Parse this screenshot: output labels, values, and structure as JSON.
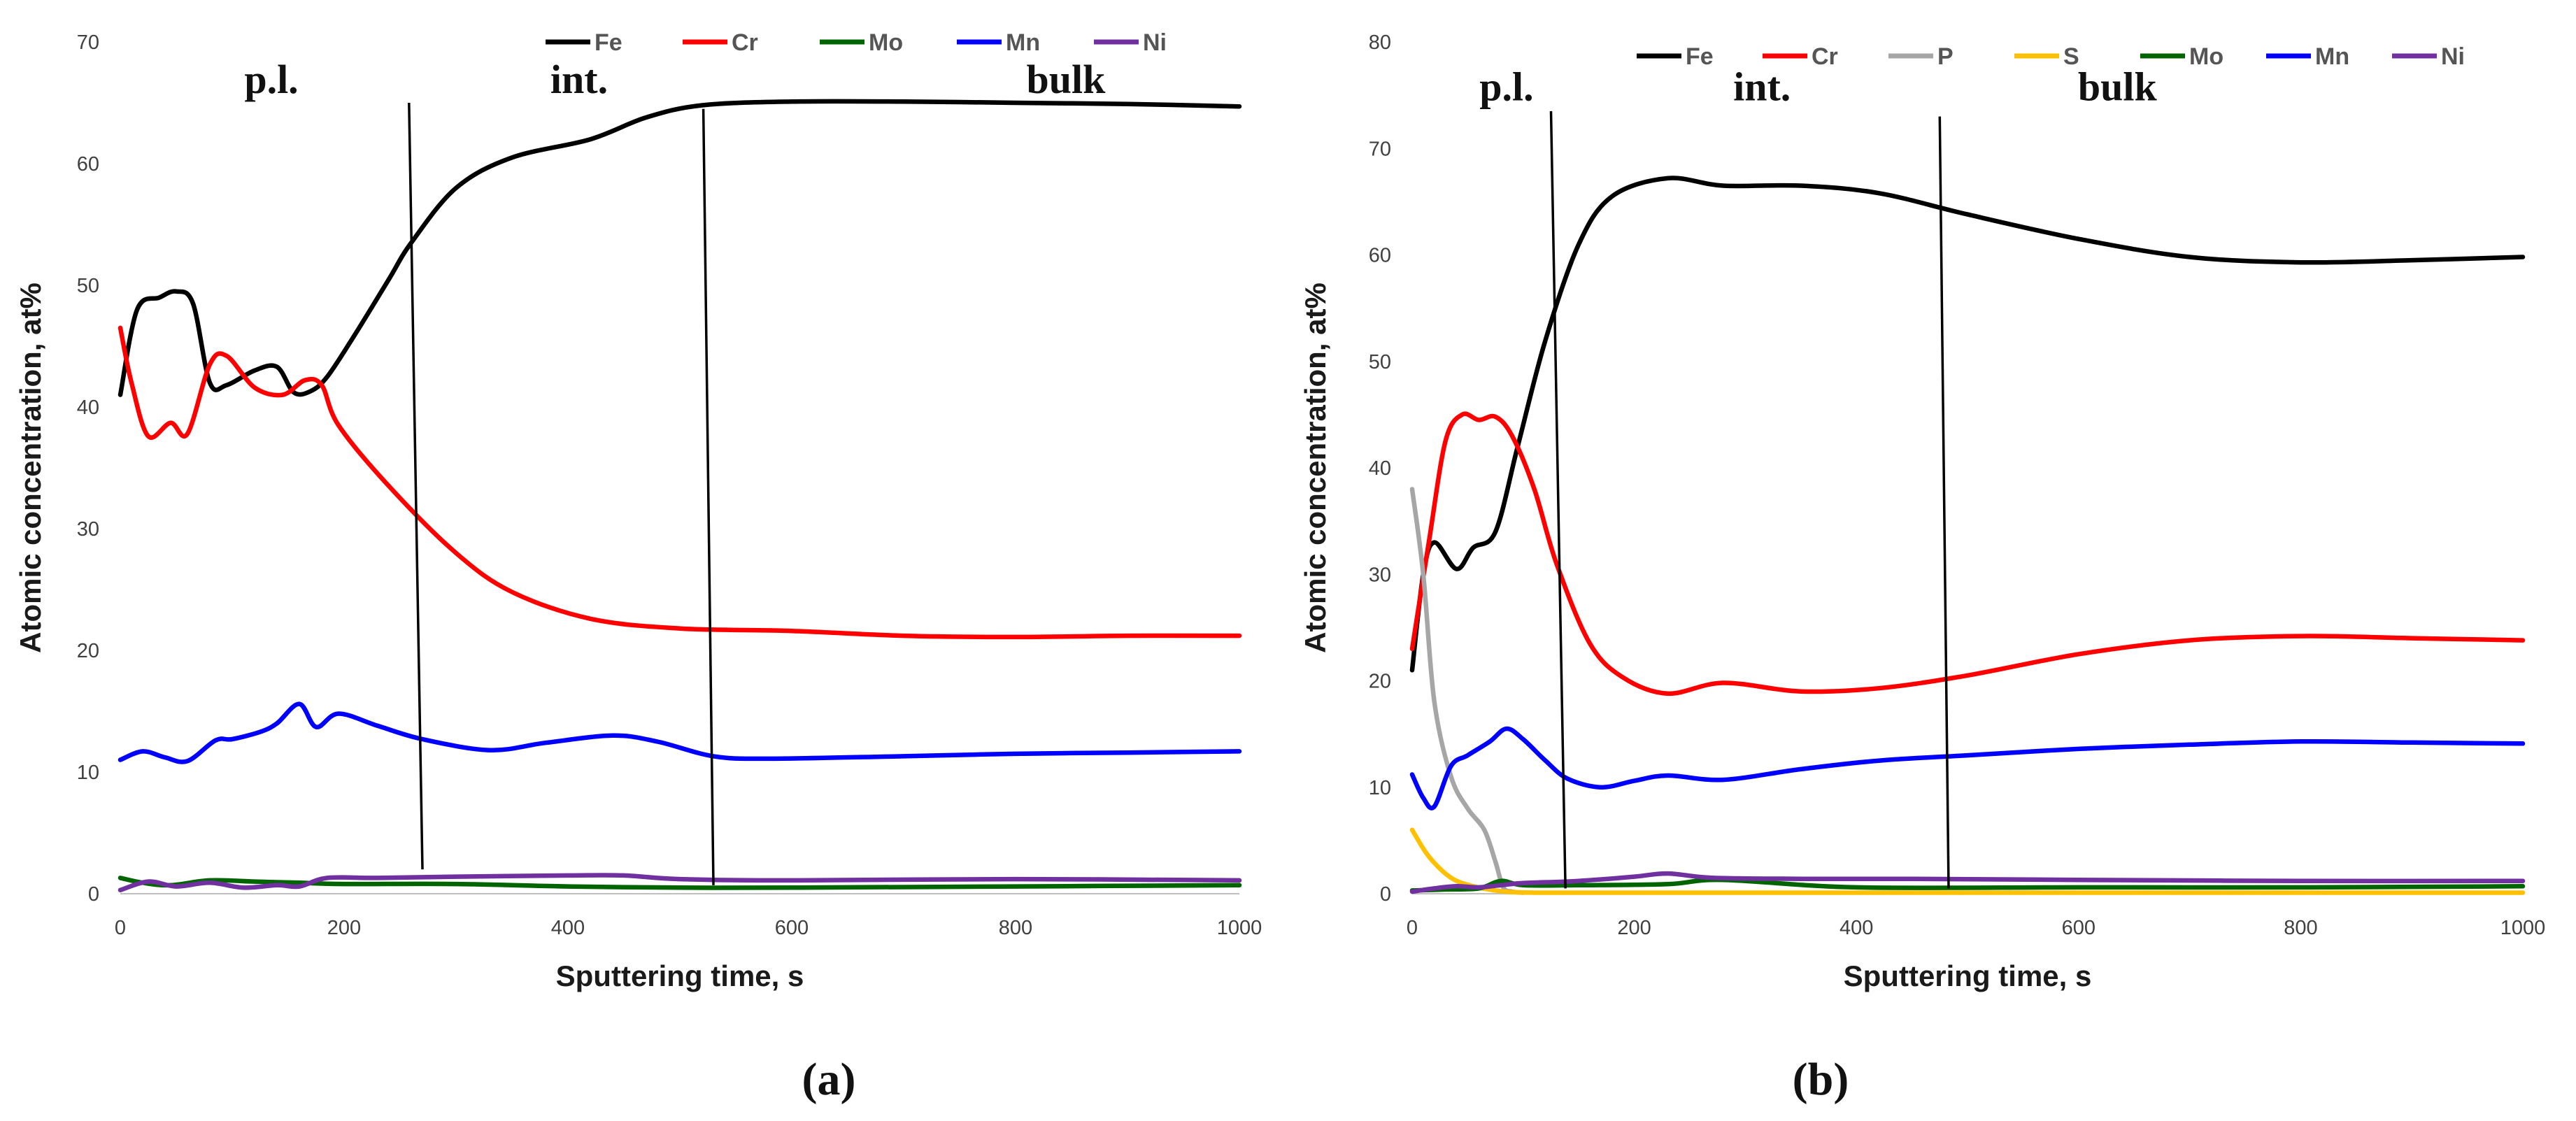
{
  "chart_data": [
    {
      "id": "a",
      "type": "line",
      "caption": "(a)",
      "xlabel": "Sputtering time, s",
      "ylabel": "Atomic concentration, at%",
      "xlim": [
        0,
        1000
      ],
      "ylim": [
        0,
        70
      ],
      "xticks": [
        0,
        200,
        400,
        600,
        800,
        1000
      ],
      "yticks": [
        0,
        10,
        20,
        30,
        40,
        50,
        60,
        70
      ],
      "grid": false,
      "legend_position": "top",
      "regions": [
        {
          "label": "p.l.",
          "x": 135,
          "y": 65.8
        },
        {
          "label": "int.",
          "x": 410,
          "y": 65.8
        },
        {
          "label": "bulk",
          "x": 845,
          "y": 65.8
        }
      ],
      "boundaries": [
        {
          "x_top": 258,
          "y_top": 65,
          "x_bottom": 270,
          "y_bottom": 2
        },
        {
          "x_top": 521,
          "y_top": 64.5,
          "x_bottom": 530,
          "y_bottom": 0.7
        }
      ],
      "series": [
        {
          "name": "Fe",
          "color": "#000000",
          "x": [
            0,
            15,
            35,
            50,
            65,
            80,
            95,
            120,
            140,
            155,
            170,
            185,
            210,
            240,
            260,
            300,
            350,
            420,
            470,
            520,
            600,
            700,
            800,
            900,
            1000
          ],
          "y": [
            41,
            48,
            49,
            49.5,
            48.5,
            42,
            41.8,
            43,
            43.3,
            41.2,
            41.3,
            42.5,
            46,
            50.5,
            53.5,
            58,
            60.5,
            62,
            63.8,
            64.8,
            65.1,
            65.1,
            65,
            64.9,
            64.7
          ]
        },
        {
          "name": "Cr",
          "color": "#ff0000",
          "x": [
            0,
            10,
            25,
            45,
            60,
            80,
            95,
            120,
            145,
            165,
            180,
            195,
            240,
            300,
            350,
            420,
            500,
            600,
            700,
            800,
            900,
            1000
          ],
          "y": [
            46.5,
            42,
            37.6,
            38.7,
            37.8,
            43.5,
            44.2,
            41.6,
            41,
            42.2,
            41.8,
            38.5,
            33.5,
            28,
            24.8,
            22.6,
            21.8,
            21.6,
            21.2,
            21.1,
            21.2,
            21.2
          ]
        },
        {
          "name": "Mo",
          "color": "#006400",
          "x": [
            0,
            20,
            45,
            80,
            120,
            160,
            200,
            300,
            400,
            500,
            600,
            800,
            1000
          ],
          "y": [
            1.3,
            0.9,
            0.7,
            1.1,
            1,
            0.9,
            0.8,
            0.8,
            0.6,
            0.5,
            0.5,
            0.6,
            0.7
          ]
        },
        {
          "name": "Mn",
          "color": "#0000ff",
          "x": [
            0,
            20,
            40,
            60,
            85,
            100,
            125,
            140,
            160,
            175,
            195,
            230,
            270,
            330,
            380,
            440,
            480,
            530,
            580,
            700,
            800,
            900,
            1000
          ],
          "y": [
            11,
            11.7,
            11.2,
            10.9,
            12.6,
            12.7,
            13.3,
            14,
            15.6,
            13.7,
            14.8,
            13.8,
            12.7,
            11.8,
            12.4,
            13,
            12.5,
            11.3,
            11.1,
            11.3,
            11.5,
            11.6,
            11.7
          ]
        },
        {
          "name": "Ni",
          "color": "#7030a0",
          "x": [
            0,
            25,
            50,
            80,
            110,
            140,
            160,
            185,
            230,
            300,
            400,
            450,
            500,
            600,
            800,
            1000
          ],
          "y": [
            0.3,
            1,
            0.6,
            0.9,
            0.5,
            0.7,
            0.6,
            1.3,
            1.3,
            1.4,
            1.5,
            1.5,
            1.2,
            1.1,
            1.2,
            1.1
          ]
        }
      ]
    },
    {
      "id": "b",
      "type": "line",
      "caption": "(b)",
      "xlabel": "Sputtering time, s",
      "ylabel": "Atomic concentration, at%",
      "xlim": [
        0,
        1000
      ],
      "ylim": [
        0,
        80
      ],
      "xticks": [
        0,
        200,
        400,
        600,
        800,
        1000
      ],
      "yticks": [
        0,
        10,
        20,
        30,
        40,
        50,
        60,
        70,
        80
      ],
      "grid": false,
      "legend_position": "top",
      "regions": [
        {
          "label": "p.l.",
          "x": 85,
          "y": 74.5
        },
        {
          "label": "int.",
          "x": 315,
          "y": 74.5
        },
        {
          "label": "bulk",
          "x": 635,
          "y": 74.5
        }
      ],
      "boundaries": [
        {
          "x_top": 125,
          "y_top": 73.5,
          "x_bottom": 138,
          "y_bottom": 0.5
        },
        {
          "x_top": 475,
          "y_top": 73,
          "x_bottom": 483,
          "y_bottom": 0.5
        }
      ],
      "series": [
        {
          "name": "Fe",
          "color": "#000000",
          "x": [
            0,
            10,
            20,
            40,
            55,
            75,
            95,
            120,
            150,
            180,
            230,
            280,
            350,
            420,
            500,
            600,
            700,
            800,
            900,
            1000
          ],
          "y": [
            21,
            30,
            33,
            30.5,
            32.5,
            34,
            42,
            52,
            61,
            65.5,
            67.2,
            66.5,
            66.5,
            65.8,
            63.8,
            61.5,
            59.8,
            59.3,
            59.5,
            59.8
          ]
        },
        {
          "name": "Cr",
          "color": "#ff0000",
          "x": [
            0,
            15,
            30,
            45,
            60,
            75,
            90,
            110,
            130,
            160,
            190,
            230,
            280,
            350,
            420,
            500,
            600,
            700,
            800,
            900,
            1000
          ],
          "y": [
            23,
            33,
            42.5,
            45,
            44.5,
            44.8,
            43,
            38,
            31,
            23.5,
            20.3,
            18.8,
            19.8,
            19,
            19.3,
            20.5,
            22.5,
            23.8,
            24.2,
            24,
            23.8
          ]
        },
        {
          "name": "P",
          "color": "#a6a6a6",
          "x": [
            0,
            10,
            20,
            35,
            50,
            65,
            75,
            82,
            90,
            100
          ],
          "y": [
            38,
            30,
            18,
            11,
            8,
            6,
            3,
            0.6,
            0.2,
            0.1
          ]
        },
        {
          "name": "S",
          "color": "#ffc000",
          "x": [
            0,
            15,
            35,
            55,
            75,
            90,
            120,
            200,
            400,
            600,
            800,
            1000
          ],
          "y": [
            6,
            3.5,
            1.5,
            0.7,
            0.3,
            0.15,
            0.1,
            0.1,
            0.1,
            0.1,
            0.1,
            0.1
          ]
        },
        {
          "name": "Mo",
          "color": "#006400",
          "x": [
            0,
            30,
            60,
            80,
            100,
            150,
            230,
            280,
            400,
            600,
            800,
            1000
          ],
          "y": [
            0.3,
            0.4,
            0.5,
            1.2,
            0.8,
            0.8,
            0.9,
            1.3,
            0.6,
            0.6,
            0.6,
            0.7
          ]
        },
        {
          "name": "Mn",
          "color": "#0000ff",
          "x": [
            0,
            10,
            20,
            35,
            50,
            70,
            85,
            100,
            120,
            140,
            170,
            200,
            230,
            280,
            350,
            420,
            500,
            600,
            700,
            800,
            900,
            1000
          ],
          "y": [
            11.2,
            9,
            8.2,
            12,
            13,
            14.3,
            15.5,
            14.5,
            12.5,
            10.8,
            10,
            10.6,
            11.1,
            10.7,
            11.7,
            12.5,
            13,
            13.6,
            14,
            14.3,
            14.2,
            14.1
          ]
        },
        {
          "name": "Ni",
          "color": "#7030a0",
          "x": [
            0,
            20,
            40,
            60,
            80,
            100,
            150,
            200,
            230,
            270,
            350,
            450,
            600,
            800,
            1000
          ],
          "y": [
            0.2,
            0.5,
            0.7,
            0.6,
            0.8,
            1,
            1.2,
            1.6,
            1.9,
            1.5,
            1.4,
            1.4,
            1.3,
            1.2,
            1.2
          ]
        }
      ]
    }
  ]
}
